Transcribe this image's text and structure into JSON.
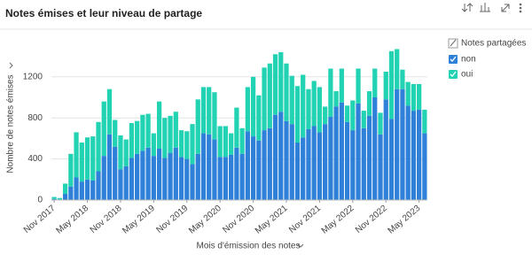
{
  "chart_data": {
    "type": "stacked_bar",
    "title": "Notes émises et leur niveau de partage",
    "x_label": "Mois d'émission des notes",
    "y_label": "Nombre de notes émises",
    "legend_title": "Notes partagées",
    "categories": [
      "Nov 2017",
      null,
      null,
      null,
      null,
      null,
      "May 2018",
      null,
      null,
      null,
      null,
      null,
      "Nov 2018",
      null,
      null,
      null,
      null,
      null,
      "May 2019",
      null,
      null,
      null,
      null,
      null,
      "Nov 2019",
      null,
      null,
      null,
      null,
      null,
      "May 2020",
      null,
      null,
      null,
      null,
      null,
      "Nov 2020",
      null,
      null,
      null,
      null,
      null,
      "May 2021",
      null,
      null,
      null,
      null,
      null,
      "Nov 2021",
      null,
      null,
      null,
      null,
      null,
      "May 2022",
      null,
      null,
      null,
      null,
      null,
      "Nov 2022",
      null,
      null,
      null,
      null,
      null,
      "May 2023",
      null
    ],
    "series": [
      {
        "name": "non",
        "color": "#2f80d9",
        "values": [
          10,
          5,
          60,
          130,
          220,
          180,
          200,
          190,
          280,
          430,
          640,
          520,
          300,
          330,
          410,
          450,
          480,
          510,
          430,
          500,
          410,
          460,
          510,
          420,
          400,
          350,
          450,
          650,
          640,
          590,
          420,
          420,
          440,
          510,
          450,
          670,
          620,
          580,
          680,
          700,
          830,
          860,
          770,
          740,
          560,
          610,
          690,
          720,
          660,
          740,
          810,
          910,
          950,
          760,
          680,
          940,
          700,
          820,
          1000,
          640,
          980,
          790,
          1080,
          1080,
          920,
          870,
          880,
          650
        ]
      },
      {
        "name": "oui",
        "color": "#22d3b3",
        "values": [
          20,
          15,
          100,
          320,
          440,
          380,
          410,
          430,
          480,
          530,
          440,
          260,
          330,
          260,
          340,
          320,
          350,
          330,
          220,
          460,
          390,
          360,
          350,
          260,
          270,
          390,
          530,
          450,
          460,
          460,
          300,
          300,
          210,
          390,
          250,
          430,
          580,
          440,
          610,
          630,
          590,
          580,
          560,
          470,
          550,
          610,
          390,
          440,
          440,
          170,
          470,
          150,
          330,
          160,
          290,
          340,
          170,
          240,
          280,
          210,
          270,
          660,
          390,
          190,
          230,
          260,
          250,
          230
        ]
      }
    ],
    "ylim": [
      0,
      1500
    ],
    "yticks": [
      0,
      400,
      800,
      1200
    ],
    "grid": true,
    "legend": "top-right"
  }
}
